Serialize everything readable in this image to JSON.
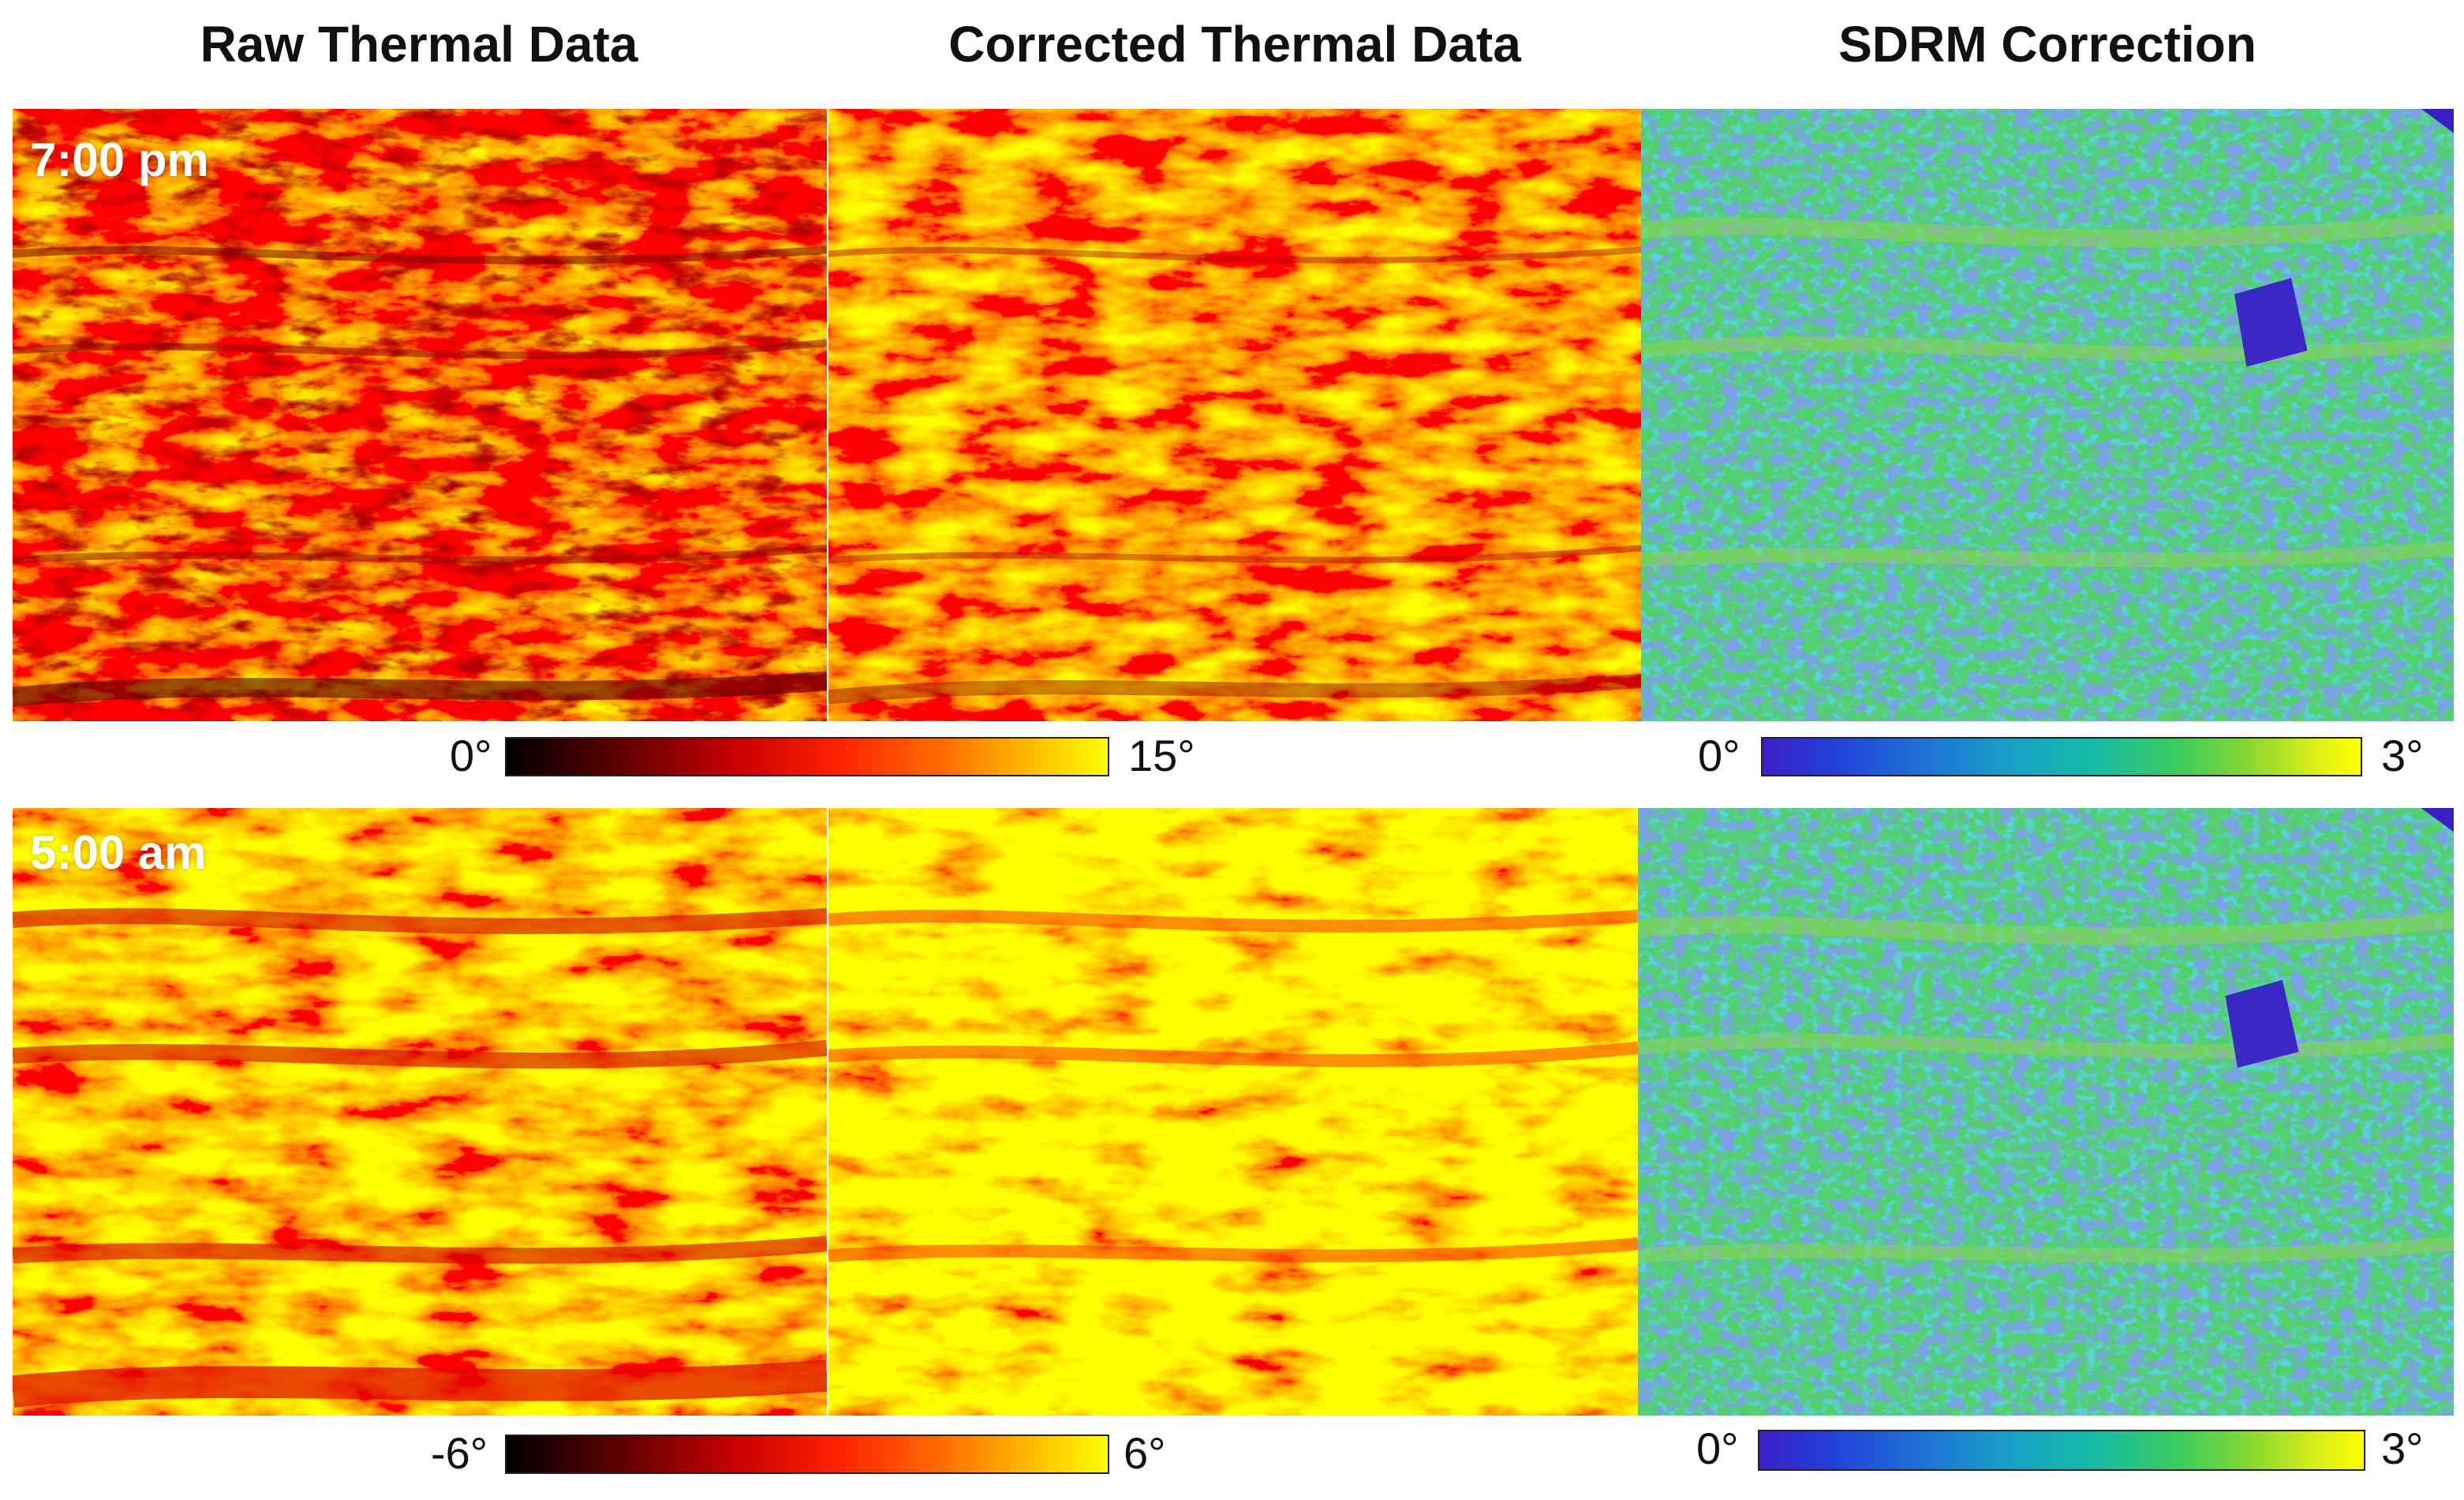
{
  "columns": {
    "raw": "Raw Thermal Data",
    "corrected": "Corrected Thermal Data",
    "sdrm": "SDRM Correction"
  },
  "rows": [
    {
      "time": "7:00 pm",
      "thermal_colorbar": {
        "min": "0°",
        "max": "15°",
        "colormap": "hot"
      },
      "sdrm_colorbar": {
        "min": "0°",
        "max": "3°",
        "colormap": "viridis"
      }
    },
    {
      "time": "5:00 am",
      "thermal_colorbar": {
        "min": "-6°",
        "max": "6°",
        "colormap": "hot"
      },
      "sdrm_colorbar": {
        "min": "0°",
        "max": "3°",
        "colormap": "viridis"
      }
    }
  ],
  "colors": {
    "thermal_base": "#ff2a00",
    "thermal_warm": "#ffd000",
    "thermal_dark": "#8a0000",
    "sdrm_base": "#4fd06a",
    "sdrm_low": "#3a1fc8",
    "sdrm_mid": "#19a8c0"
  }
}
